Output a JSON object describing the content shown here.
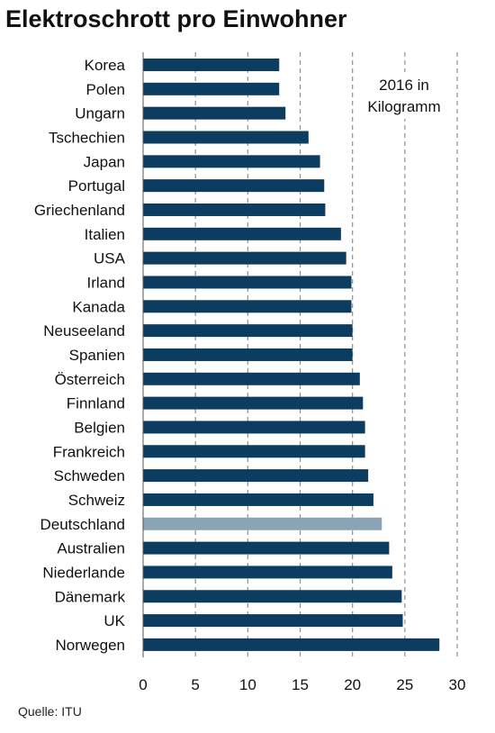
{
  "chart_data": {
    "type": "bar",
    "orientation": "horizontal",
    "title": "Elektroschrott pro Einwohner",
    "annotation_lines": [
      "2016 in",
      "Kilogramm"
    ],
    "source": "Quelle: ITU",
    "xlim": [
      0,
      30
    ],
    "xticks": [
      0,
      5,
      10,
      15,
      20,
      25,
      30
    ],
    "grid": "vertical dashed",
    "legend": "none",
    "categories": [
      "Korea",
      "Polen",
      "Ungarn",
      "Tschechien",
      "Japan",
      "Portugal",
      "Griechenland",
      "Italien",
      "USA",
      "Irland",
      "Kanada",
      "Neuseeland",
      "Spanien",
      "Österreich",
      "Finnland",
      "Belgien",
      "Frankreich",
      "Schweden",
      "Schweiz",
      "Deutschland",
      "Australien",
      "Niederlande",
      "Dänemark",
      "UK",
      "Norwegen"
    ],
    "values": [
      13.0,
      13.0,
      13.6,
      15.8,
      16.9,
      17.3,
      17.4,
      18.9,
      19.4,
      19.9,
      19.9,
      20.0,
      20.0,
      20.7,
      21.0,
      21.2,
      21.2,
      21.5,
      22.0,
      22.8,
      23.5,
      23.8,
      24.7,
      24.8,
      28.3
    ],
    "highlight_category": "Deutschland",
    "colors": {
      "bar": "#0c3d61",
      "highlight": "#8aa4b6",
      "grid": "#8f8f8f"
    }
  }
}
